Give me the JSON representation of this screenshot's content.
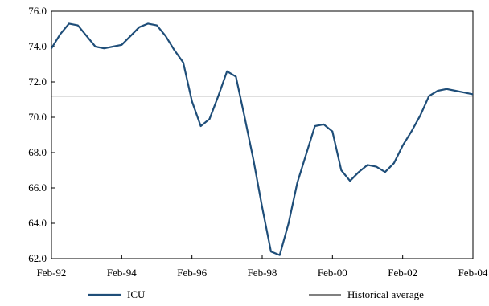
{
  "chart_data": {
    "type": "line",
    "title": "",
    "xlabel": "",
    "ylabel": "",
    "ylim": [
      62.0,
      76.0
    ],
    "yticks": [
      62.0,
      64.0,
      66.0,
      68.0,
      70.0,
      72.0,
      74.0,
      76.0
    ],
    "ytick_labels": [
      "62.0",
      "64.0",
      "66.0",
      "68.0",
      "70.0",
      "72.0",
      "74.0",
      "76.0"
    ],
    "xlim": [
      "1992-02",
      "2004-02"
    ],
    "xtick_labels": [
      "Feb-92",
      "Feb-94",
      "Feb-96",
      "Feb-98",
      "Feb-00",
      "Feb-02",
      "Feb-04"
    ],
    "xtick_dates": [
      "1992-02",
      "1994-02",
      "1996-02",
      "1998-02",
      "2000-02",
      "2002-02",
      "2004-02"
    ],
    "grid": false,
    "legend_position": "bottom",
    "series": [
      {
        "name": "ICU",
        "color": "#1f4e79",
        "x": [
          "1992-02",
          "1992-05",
          "1992-08",
          "1992-11",
          "1993-02",
          "1993-05",
          "1993-08",
          "1993-11",
          "1994-02",
          "1994-05",
          "1994-08",
          "1994-11",
          "1995-02",
          "1995-05",
          "1995-08",
          "1995-11",
          "1996-02",
          "1996-05",
          "1996-08",
          "1996-11",
          "1997-02",
          "1997-05",
          "1997-08",
          "1997-11",
          "1998-02",
          "1998-05",
          "1998-08",
          "1998-11",
          "1999-02",
          "1999-05",
          "1999-08",
          "1999-11",
          "2000-02",
          "2000-05",
          "2000-08",
          "2000-11",
          "2001-02",
          "2001-05",
          "2001-08",
          "2001-11",
          "2002-02",
          "2002-05",
          "2002-08",
          "2002-11",
          "2003-02",
          "2003-05",
          "2003-08",
          "2003-11",
          "2004-02"
        ],
        "values": [
          73.9,
          74.7,
          75.3,
          75.2,
          74.6,
          74.0,
          73.9,
          74.0,
          74.1,
          74.6,
          75.1,
          75.3,
          75.2,
          74.6,
          73.8,
          73.1,
          70.9,
          69.5,
          69.9,
          71.2,
          72.6,
          72.3,
          70.0,
          67.6,
          64.9,
          62.4,
          62.2,
          64.0,
          66.3,
          67.9,
          69.5,
          69.6,
          69.2,
          67.0,
          66.4,
          66.9,
          67.3,
          67.2,
          66.9,
          67.4,
          68.4,
          69.2,
          70.1,
          71.2,
          71.5,
          71.6,
          71.5,
          71.4,
          71.3
        ]
      },
      {
        "name": "Historical average",
        "color": "#000000",
        "type": "hline",
        "value": 71.2
      }
    ]
  }
}
